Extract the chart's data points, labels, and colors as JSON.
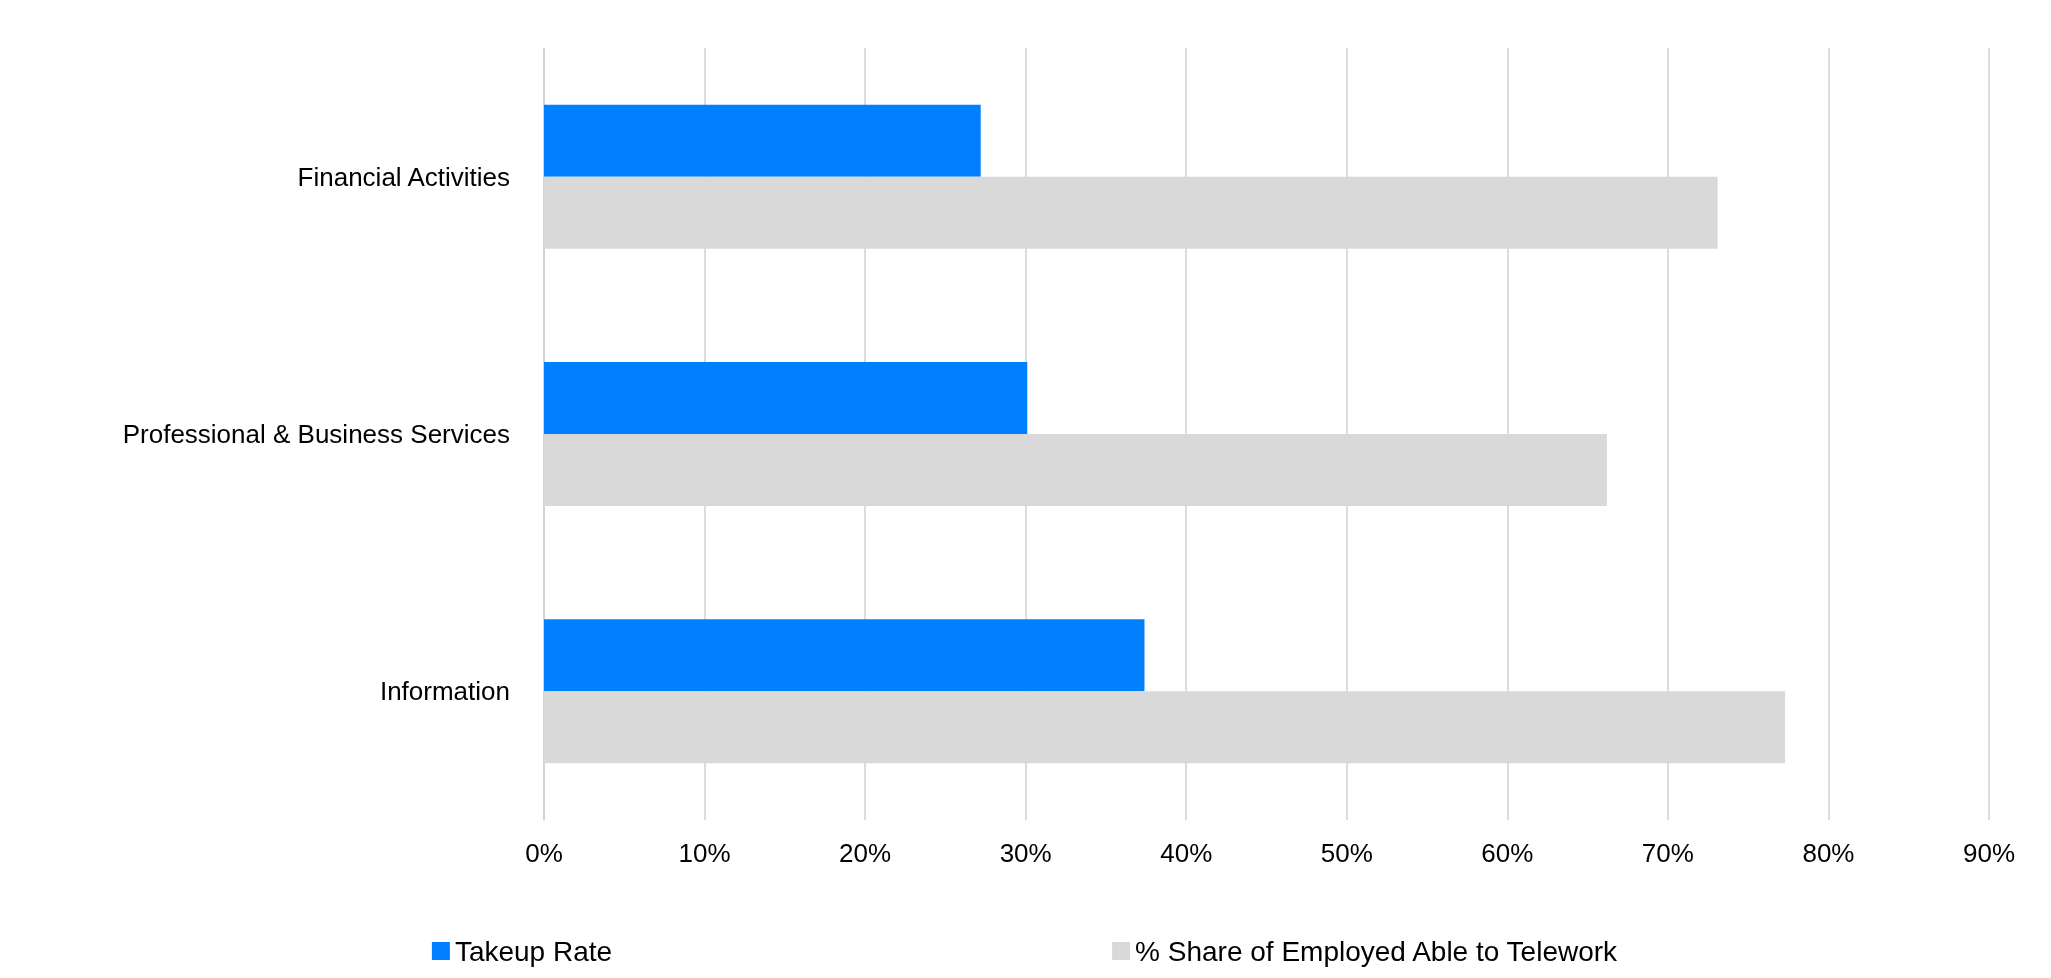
{
  "chart_data": {
    "type": "bar",
    "orientation": "horizontal",
    "categories": [
      "Financial Activities",
      "Professional & Business Services",
      "Information"
    ],
    "series": [
      {
        "name": "Takeup Rate",
        "color": "#0080ff",
        "values": [
          27.2,
          30.1,
          37.4
        ]
      },
      {
        "name": "% Share of Employed Able to Telework",
        "color": "#d9d9d9",
        "values": [
          73.1,
          66.2,
          77.3
        ]
      }
    ],
    "xlim": [
      0,
      90
    ],
    "xticks": [
      {
        "value": 0,
        "label": "0%"
      },
      {
        "value": 10,
        "label": "10%"
      },
      {
        "value": 20,
        "label": "20%"
      },
      {
        "value": 30,
        "label": "30%"
      },
      {
        "value": 40,
        "label": "40%"
      },
      {
        "value": 50,
        "label": "50%"
      },
      {
        "value": 60,
        "label": "60%"
      },
      {
        "value": 70,
        "label": "70%"
      },
      {
        "value": 80,
        "label": "80%"
      },
      {
        "value": 90,
        "label": "90%"
      }
    ],
    "grid": "x",
    "legend": "bottom"
  }
}
